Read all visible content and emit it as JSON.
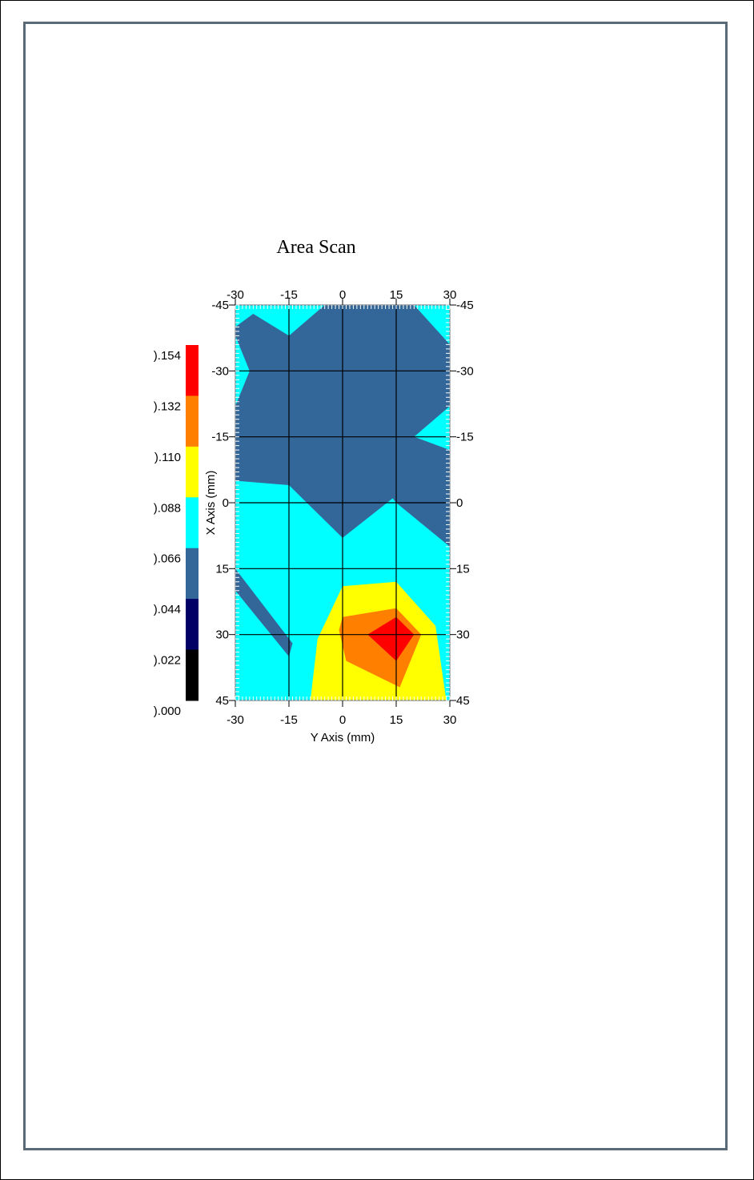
{
  "chart_data": {
    "type": "heatmap",
    "title": "Area Scan",
    "xlabel": "Y Axis (mm)",
    "ylabel": "X Axis (mm)",
    "xlim": [
      -30,
      30
    ],
    "ylim": [
      -45,
      45
    ],
    "y_axis_inverted": true,
    "grid": true,
    "x_ticks": [
      "-30",
      "-15",
      "0",
      "15",
      "30"
    ],
    "y_ticks": [
      "-45",
      "-30",
      "-15",
      "0",
      "15",
      "30",
      "45"
    ],
    "colorbar": {
      "labels": [
        ").154",
        ").132",
        ").110",
        ").088",
        ").066",
        ").044",
        ").022",
        ").000"
      ],
      "bands_top_to_bottom": [
        "#ff0000",
        "#ff8000",
        "#ffff00",
        "#00ffff",
        "#336699",
        "#000066",
        "#000000"
      ],
      "range": [
        0.0,
        0.154
      ]
    },
    "contour_levels": [
      0.022,
      0.044,
      0.066,
      0.088,
      0.11,
      0.132
    ],
    "level_colors": [
      "#00ffff",
      "#336699",
      "#ffff00",
      "#ff8000",
      "#ff0000"
    ],
    "regions": [
      {
        "level": "0.066-0.088",
        "color": "#00ffff",
        "points": [
          [
            -30,
            -45
          ],
          [
            30,
            -45
          ],
          [
            30,
            45
          ],
          [
            -30,
            45
          ]
        ]
      },
      {
        "level": "0.044-0.066",
        "color": "#336699",
        "points": [
          [
            -30,
            -40
          ],
          [
            -25,
            -43
          ],
          [
            -15,
            -38
          ],
          [
            -5,
            -45
          ],
          [
            20,
            -45
          ],
          [
            30,
            -36
          ],
          [
            30,
            -22
          ],
          [
            20,
            -15
          ],
          [
            30,
            -12
          ],
          [
            30,
            10
          ],
          [
            15,
            0
          ],
          [
            14,
            -1
          ],
          [
            0,
            8
          ],
          [
            -15,
            -4
          ],
          [
            -30,
            -5
          ],
          [
            -30,
            -22
          ],
          [
            -26,
            -30
          ],
          [
            -30,
            -38
          ]
        ]
      },
      {
        "level": "0.044-0.066",
        "color": "#336699",
        "points": [
          [
            -30,
            15
          ],
          [
            -14,
            32
          ],
          [
            -15,
            35
          ],
          [
            -30,
            20
          ]
        ]
      },
      {
        "level": "0.088-0.110",
        "color": "#ffff00",
        "points": [
          [
            0,
            19
          ],
          [
            15,
            18
          ],
          [
            26,
            28
          ],
          [
            29,
            45
          ],
          [
            -9,
            45
          ],
          [
            -7,
            31
          ]
        ]
      },
      {
        "level": "0.110-0.132",
        "color": "#ff8000",
        "points": [
          [
            0,
            26
          ],
          [
            15,
            24
          ],
          [
            22,
            30
          ],
          [
            16,
            42
          ],
          [
            1,
            36
          ],
          [
            -1,
            29
          ]
        ]
      },
      {
        "level": "0.132-0.154",
        "color": "#ff0000",
        "points": [
          [
            15,
            26
          ],
          [
            20,
            30
          ],
          [
            15,
            36
          ],
          [
            7,
            30
          ]
        ]
      }
    ]
  }
}
